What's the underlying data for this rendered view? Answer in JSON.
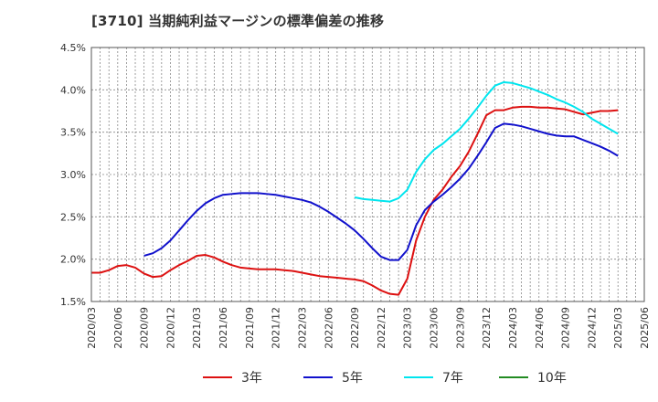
{
  "title": "[3710]  当期純利益マージンの標準偏差の推移",
  "chart_data": {
    "type": "line",
    "y_ticks": [
      "4.5%",
      "4.0%",
      "3.5%",
      "3.0%",
      "2.5%",
      "2.0%",
      "1.5%"
    ],
    "ylim": [
      1.5,
      4.5
    ],
    "x_ticks": [
      "2020/03",
      "2020/06",
      "2020/09",
      "2020/12",
      "2021/03",
      "2021/06",
      "2021/09",
      "2021/12",
      "2022/03",
      "2022/06",
      "2022/09",
      "2022/12",
      "2023/03",
      "2023/06",
      "2023/09",
      "2023/12",
      "2024/03",
      "2024/06",
      "2024/09",
      "2024/12",
      "2025/03",
      "2025/06"
    ],
    "x_range": [
      "2020-03",
      "2025-06"
    ],
    "grid": true,
    "legend_position": "bottom",
    "series": [
      {
        "name": "3年",
        "color": "#dd1111",
        "points": [
          [
            "2020-03",
            1.84
          ],
          [
            "2020-04",
            1.84
          ],
          [
            "2020-05",
            1.87
          ],
          [
            "2020-06",
            1.92
          ],
          [
            "2020-07",
            1.93
          ],
          [
            "2020-08",
            1.9
          ],
          [
            "2020-09",
            1.83
          ],
          [
            "2020-10",
            1.79
          ],
          [
            "2020-11",
            1.8
          ],
          [
            "2020-12",
            1.87
          ],
          [
            "2021-01",
            1.93
          ],
          [
            "2021-02",
            1.98
          ],
          [
            "2021-03",
            2.04
          ],
          [
            "2021-04",
            2.05
          ],
          [
            "2021-05",
            2.02
          ],
          [
            "2021-06",
            1.97
          ],
          [
            "2021-07",
            1.93
          ],
          [
            "2021-08",
            1.9
          ],
          [
            "2021-09",
            1.89
          ],
          [
            "2021-10",
            1.88
          ],
          [
            "2021-11",
            1.88
          ],
          [
            "2021-12",
            1.88
          ],
          [
            "2022-01",
            1.87
          ],
          [
            "2022-02",
            1.86
          ],
          [
            "2022-03",
            1.84
          ],
          [
            "2022-04",
            1.82
          ],
          [
            "2022-05",
            1.8
          ],
          [
            "2022-06",
            1.79
          ],
          [
            "2022-07",
            1.78
          ],
          [
            "2022-08",
            1.77
          ],
          [
            "2022-09",
            1.76
          ],
          [
            "2022-10",
            1.74
          ],
          [
            "2022-11",
            1.69
          ],
          [
            "2022-12",
            1.63
          ],
          [
            "2023-01",
            1.59
          ],
          [
            "2023-02",
            1.58
          ],
          [
            "2023-03",
            1.77
          ],
          [
            "2023-04",
            2.22
          ],
          [
            "2023-05",
            2.5
          ],
          [
            "2023-06",
            2.7
          ],
          [
            "2023-07",
            2.82
          ],
          [
            "2023-08",
            2.97
          ],
          [
            "2023-09",
            3.1
          ],
          [
            "2023-10",
            3.27
          ],
          [
            "2023-11",
            3.48
          ],
          [
            "2023-12",
            3.7
          ],
          [
            "2024-01",
            3.76
          ],
          [
            "2024-02",
            3.76
          ],
          [
            "2024-03",
            3.79
          ],
          [
            "2024-04",
            3.8
          ],
          [
            "2024-05",
            3.8
          ],
          [
            "2024-06",
            3.79
          ],
          [
            "2024-07",
            3.79
          ],
          [
            "2024-08",
            3.78
          ],
          [
            "2024-09",
            3.77
          ],
          [
            "2024-10",
            3.74
          ],
          [
            "2024-11",
            3.71
          ],
          [
            "2024-12",
            3.73
          ],
          [
            "2025-01",
            3.75
          ],
          [
            "2025-02",
            3.75
          ],
          [
            "2025-03",
            3.76
          ]
        ]
      },
      {
        "name": "5年",
        "color": "#1111cc",
        "points": [
          [
            "2020-09",
            2.04
          ],
          [
            "2020-10",
            2.07
          ],
          [
            "2020-11",
            2.13
          ],
          [
            "2020-12",
            2.22
          ],
          [
            "2021-01",
            2.34
          ],
          [
            "2021-02",
            2.46
          ],
          [
            "2021-03",
            2.57
          ],
          [
            "2021-04",
            2.66
          ],
          [
            "2021-05",
            2.72
          ],
          [
            "2021-06",
            2.76
          ],
          [
            "2021-07",
            2.77
          ],
          [
            "2021-08",
            2.78
          ],
          [
            "2021-09",
            2.78
          ],
          [
            "2021-10",
            2.78
          ],
          [
            "2021-11",
            2.77
          ],
          [
            "2021-12",
            2.76
          ],
          [
            "2022-01",
            2.74
          ],
          [
            "2022-02",
            2.72
          ],
          [
            "2022-03",
            2.7
          ],
          [
            "2022-04",
            2.67
          ],
          [
            "2022-05",
            2.62
          ],
          [
            "2022-06",
            2.56
          ],
          [
            "2022-07",
            2.49
          ],
          [
            "2022-08",
            2.42
          ],
          [
            "2022-09",
            2.34
          ],
          [
            "2022-10",
            2.24
          ],
          [
            "2022-11",
            2.13
          ],
          [
            "2022-12",
            2.03
          ],
          [
            "2023-01",
            1.99
          ],
          [
            "2023-02",
            1.99
          ],
          [
            "2023-03",
            2.11
          ],
          [
            "2023-04",
            2.4
          ],
          [
            "2023-05",
            2.58
          ],
          [
            "2023-06",
            2.68
          ],
          [
            "2023-07",
            2.76
          ],
          [
            "2023-08",
            2.85
          ],
          [
            "2023-09",
            2.95
          ],
          [
            "2023-10",
            3.07
          ],
          [
            "2023-11",
            3.22
          ],
          [
            "2023-12",
            3.38
          ],
          [
            "2024-01",
            3.55
          ],
          [
            "2024-02",
            3.6
          ],
          [
            "2024-03",
            3.59
          ],
          [
            "2024-04",
            3.57
          ],
          [
            "2024-05",
            3.54
          ],
          [
            "2024-06",
            3.51
          ],
          [
            "2024-07",
            3.48
          ],
          [
            "2024-08",
            3.46
          ],
          [
            "2024-09",
            3.45
          ],
          [
            "2024-10",
            3.45
          ],
          [
            "2024-11",
            3.41
          ],
          [
            "2024-12",
            3.37
          ],
          [
            "2025-01",
            3.33
          ],
          [
            "2025-02",
            3.28
          ],
          [
            "2025-03",
            3.22
          ]
        ]
      },
      {
        "name": "7年",
        "color": "#00e5ee",
        "points": [
          [
            "2022-09",
            2.73
          ],
          [
            "2022-10",
            2.71
          ],
          [
            "2022-11",
            2.7
          ],
          [
            "2022-12",
            2.69
          ],
          [
            "2023-01",
            2.68
          ],
          [
            "2023-02",
            2.72
          ],
          [
            "2023-03",
            2.82
          ],
          [
            "2023-04",
            3.03
          ],
          [
            "2023-05",
            3.18
          ],
          [
            "2023-06",
            3.29
          ],
          [
            "2023-07",
            3.36
          ],
          [
            "2023-08",
            3.45
          ],
          [
            "2023-09",
            3.54
          ],
          [
            "2023-10",
            3.66
          ],
          [
            "2023-11",
            3.79
          ],
          [
            "2023-12",
            3.93
          ],
          [
            "2024-01",
            4.05
          ],
          [
            "2024-02",
            4.09
          ],
          [
            "2024-03",
            4.08
          ],
          [
            "2024-04",
            4.05
          ],
          [
            "2024-05",
            4.02
          ],
          [
            "2024-06",
            3.98
          ],
          [
            "2024-07",
            3.94
          ],
          [
            "2024-08",
            3.89
          ],
          [
            "2024-09",
            3.85
          ],
          [
            "2024-10",
            3.8
          ],
          [
            "2024-11",
            3.74
          ],
          [
            "2024-12",
            3.66
          ],
          [
            "2025-01",
            3.6
          ],
          [
            "2025-02",
            3.54
          ],
          [
            "2025-03",
            3.48
          ]
        ]
      },
      {
        "name": "10年",
        "color": "#228b22",
        "points": []
      }
    ]
  }
}
